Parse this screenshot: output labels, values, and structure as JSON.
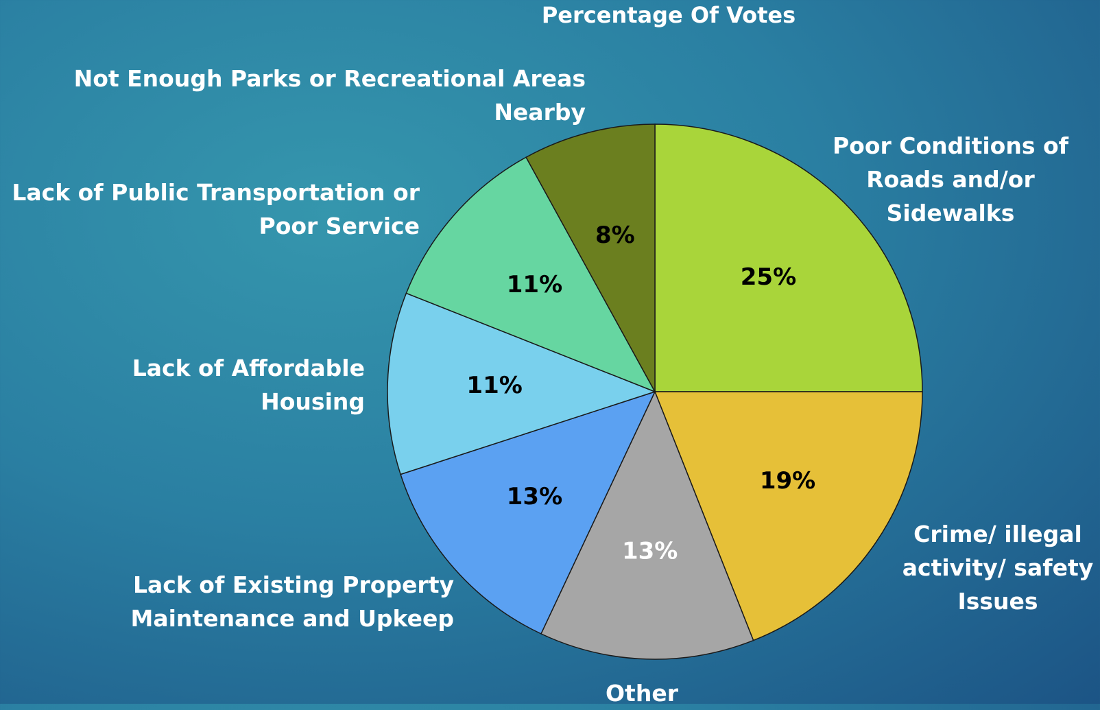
{
  "chart_data": {
    "type": "pie",
    "title": "Percentage Of Votes",
    "categories": [
      "Poor Conditions of Roads and/or Sidewalks",
      "Crime/ illegal activity/ safety Issues",
      "Other",
      "Lack of Existing Property Maintenance and Upkeep",
      "Lack of Affordable Housing",
      "Lack of Public Transportation or Poor Service",
      "Not Enough Parks or Recreational Areas Nearby"
    ],
    "values": [
      25,
      19,
      13,
      13,
      11,
      11,
      8
    ],
    "value_labels": [
      "25%",
      "19%",
      "13%",
      "13%",
      "11%",
      "11%",
      "8%"
    ],
    "colors": [
      "#a9d53a",
      "#e6c038",
      "#a6a6a6",
      "#5ba1f2",
      "#79d0ed",
      "#66d6a1",
      "#6b7f1f"
    ]
  }
}
